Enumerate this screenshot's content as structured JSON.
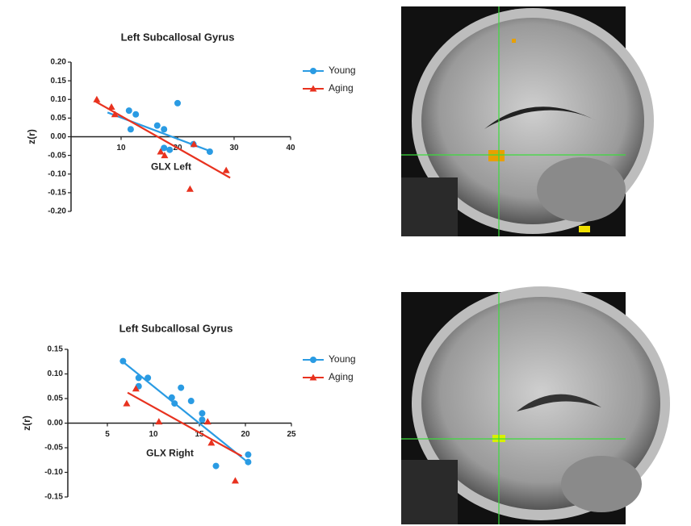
{
  "chart_data": [
    {
      "type": "scatter",
      "title": "Left Subcallosal Gyrus",
      "x_label": "GLX Left",
      "y_label": "z(r)",
      "xlim": [
        0,
        40
      ],
      "xticks": [
        10,
        20,
        30,
        40
      ],
      "ylim": [
        -0.2,
        0.2
      ],
      "yticks": [
        {
          "value": 0.2,
          "label": "0.20"
        },
        {
          "value": 0.15,
          "label": "0.15"
        },
        {
          "value": 0.1,
          "label": "0.10"
        },
        {
          "value": 0.05,
          "label": "0.05"
        },
        {
          "value": 0,
          "label": "0.00"
        },
        {
          "value": -0.05,
          "label": "-0.05"
        },
        {
          "value": -0.1,
          "label": "-0.10"
        },
        {
          "value": -0.15,
          "label": "-0.15"
        },
        {
          "value": -0.2,
          "label": "-0.20"
        }
      ],
      "series": [
        {
          "name": "Young",
          "color": "#2a9be3",
          "marker": "circle",
          "x": [
            11.4,
            12.6,
            11.7,
            16.4,
            17.6,
            20,
            17.6,
            18.6,
            22.8,
            25.7
          ],
          "values": [
            0.07,
            0.06,
            0.02,
            0.03,
            0.02,
            0.09,
            -0.03,
            -0.035,
            -0.02,
            -0.04
          ],
          "trend": {
            "x": [
              7.6,
              26
            ],
            "values": [
              0.065,
              -0.04
            ]
          }
        },
        {
          "name": "Aging",
          "color": "#e8321f",
          "marker": "triangle",
          "x": [
            5.7,
            8.3,
            8.9,
            17,
            17.7,
            22.9,
            22.2,
            28.6
          ],
          "values": [
            0.1,
            0.08,
            0.06,
            -0.04,
            -0.05,
            -0.02,
            -0.14,
            -0.09
          ],
          "trend": {
            "x": [
              5.4,
              29.3
            ],
            "values": [
              0.095,
              -0.11
            ]
          }
        }
      ]
    },
    {
      "type": "scatter",
      "title": "Left Subcallosal Gyrus",
      "x_label": "GLX Right",
      "y_label": "z(r)",
      "xlim": [
        0,
        25
      ],
      "xticks": [
        5,
        10,
        15,
        20,
        25
      ],
      "ylim": [
        -0.15,
        0.15
      ],
      "yticks": [
        {
          "value": 0.15,
          "label": "0.15"
        },
        {
          "value": 0.1,
          "label": "0.10"
        },
        {
          "value": 0.05,
          "label": "0.05"
        },
        {
          "value": 0,
          "label": "0.00"
        },
        {
          "value": -0.05,
          "label": "-0.05"
        },
        {
          "value": -0.1,
          "label": "-0.10"
        },
        {
          "value": -0.15,
          "label": "-0.15"
        }
      ],
      "series": [
        {
          "name": "Young",
          "color": "#2a9be3",
          "marker": "circle",
          "x": [
            6.7,
            8.4,
            9.4,
            8.4,
            12,
            13,
            12.3,
            14.1,
            15.3,
            15.3,
            16.8,
            20.3,
            20.3
          ],
          "values": [
            0.126,
            0.092,
            0.092,
            0.075,
            0.052,
            0.072,
            0.04,
            0.045,
            0.02,
            0.007,
            -0.087,
            -0.064,
            -0.079
          ],
          "trend": {
            "x": [
              6.6,
              20.3
            ],
            "values": [
              0.126,
              -0.08
            ]
          }
        },
        {
          "name": "Aging",
          "color": "#e8321f",
          "marker": "triangle",
          "x": [
            7.1,
            8.1,
            10.6,
            15.9,
            16.3,
            18.9
          ],
          "values": [
            0.04,
            0.07,
            0.003,
            0.003,
            -0.04,
            -0.117
          ],
          "trend": {
            "x": [
              7.2,
              19.6
            ],
            "values": [
              0.062,
              -0.067
            ]
          }
        }
      ]
    }
  ]
}
